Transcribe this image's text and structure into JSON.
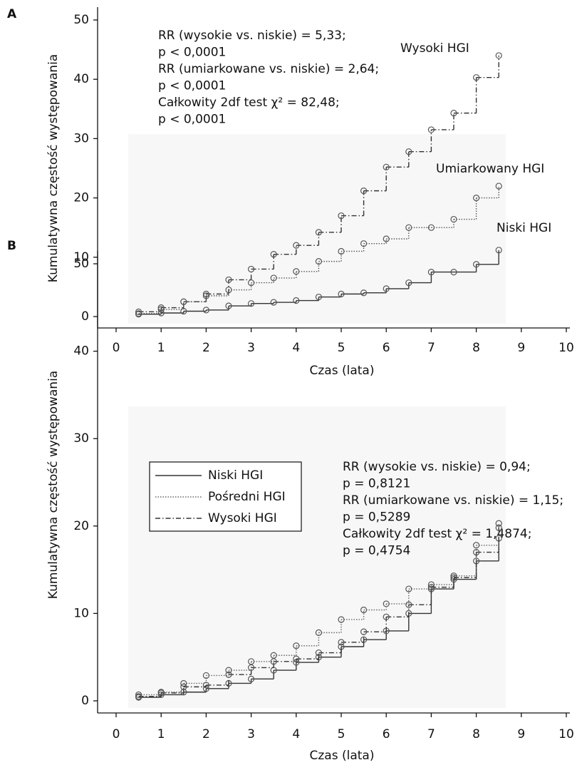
{
  "chart_data": [
    {
      "type": "step",
      "panel": "A",
      "ylabel": "Kumulatywna częstość występowania",
      "xlabel": "Czas (lata)",
      "annotations": [
        "RR (wysokie vs. niskie) = 5,33;",
        "p < 0,0001",
        "RR (umiarkowane vs. niskie) = 2,64;",
        "p < 0,0001",
        "Całkowity 2df test χ² = 82,48;",
        "p < 0,0001"
      ],
      "x": [
        0.5,
        1,
        1.5,
        2,
        2.5,
        3,
        3.5,
        4,
        4.5,
        5,
        5.5,
        6,
        6.5,
        7,
        7.5,
        8,
        8.5
      ],
      "series": [
        {
          "name": "Wysoki HGI",
          "color": "#333333",
          "style": "dashdot",
          "values": [
            0.8,
            1.5,
            2.5,
            3.8,
            6.2,
            8,
            10.5,
            12,
            14.2,
            17,
            21.2,
            25.2,
            27.8,
            31.5,
            34.3,
            40.3,
            44
          ]
        },
        {
          "name": "Umiarkowany HGI",
          "color": "#555555",
          "style": "dotted",
          "values": [
            0.5,
            1.2,
            2.5,
            3.5,
            4.5,
            5.7,
            6.5,
            7.6,
            9.3,
            11,
            12.3,
            13.1,
            15,
            15,
            16.4,
            20,
            22
          ]
        },
        {
          "name": "Niski HGI",
          "color": "#333333",
          "style": "solid",
          "values": [
            0.4,
            0.6,
            0.9,
            1.1,
            1.8,
            2.2,
            2.4,
            2.7,
            3.3,
            3.8,
            4,
            4.7,
            5.7,
            7.5,
            7.5,
            8.8,
            11.2
          ]
        }
      ],
      "legend": false,
      "xlim": [
        0,
        10
      ],
      "xticks": [
        0,
        1,
        2,
        3,
        4,
        5,
        6,
        7,
        8,
        9,
        10
      ],
      "ylim": [
        0,
        50
      ],
      "yticks": [
        0,
        10,
        20,
        30,
        40,
        50
      ]
    },
    {
      "type": "step",
      "panel": "B",
      "ylabel": "Kumulatywna częstość występowania",
      "xlabel": "Czas (lata)",
      "annotations": [
        "RR (wysokie vs. niskie) = 0,94;",
        "p = 0,8121",
        "RR (umiarkowane vs. niskie) = 1,15;",
        "p = 0,5289",
        "Całkowity 2df test χ² = 1,4874;",
        "p = 0,4754"
      ],
      "x": [
        0.5,
        1,
        1.5,
        2,
        2.5,
        3,
        3.5,
        4,
        4.5,
        5,
        5.5,
        6,
        6.5,
        7,
        7.5,
        8,
        8.5
      ],
      "series": [
        {
          "name": "Niski HGI",
          "color": "#333333",
          "style": "solid",
          "values": [
            0.4,
            0.7,
            1,
            1.4,
            2,
            2.5,
            3.5,
            4.4,
            5,
            6.2,
            7,
            8,
            10,
            12.8,
            13.9,
            16,
            18.6
          ]
        },
        {
          "name": "Pośredni HGI",
          "color": "#666666",
          "style": "dotted",
          "values": [
            0.7,
            1,
            2,
            2.9,
            3.5,
            4.5,
            5.2,
            6.3,
            7.8,
            9.3,
            10.4,
            11.1,
            12.8,
            13.3,
            14.3,
            17.8,
            20.3
          ]
        },
        {
          "name": "Wysoki HGI",
          "color": "#333333",
          "style": "dashdot",
          "values": [
            0.5,
            0.9,
            1.6,
            1.8,
            3,
            3.8,
            4.5,
            4.8,
            5.5,
            6.7,
            7.9,
            9.6,
            11,
            13,
            14.1,
            17,
            19.8
          ]
        }
      ],
      "legend": true,
      "xlim": [
        0,
        10
      ],
      "xticks": [
        0,
        1,
        2,
        3,
        4,
        5,
        6,
        7,
        8,
        9,
        10
      ],
      "ylim": [
        0,
        50
      ],
      "yticks": [
        0,
        10,
        20,
        30,
        40,
        50
      ]
    }
  ]
}
